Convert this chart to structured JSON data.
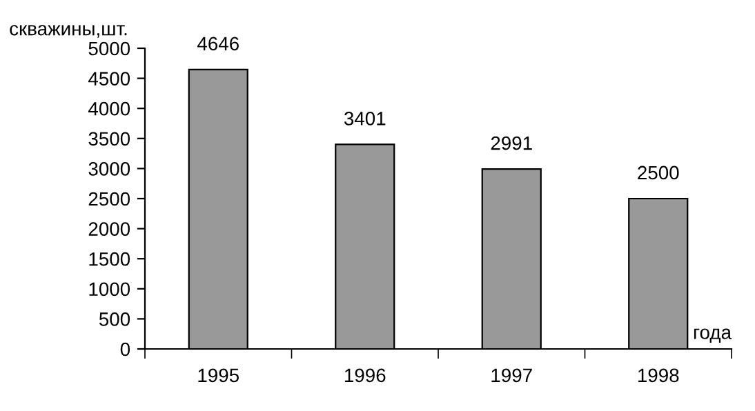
{
  "chart_data": {
    "type": "bar",
    "xlabel": "года",
    "ylabel": "скважины,шт.",
    "categories": [
      "1995",
      "1996",
      "1997",
      "1998"
    ],
    "values": [
      4646,
      3401,
      2991,
      2500
    ],
    "color": "#999999",
    "ylim": [
      0,
      5000
    ],
    "yticks": [
      0,
      500,
      1000,
      1500,
      2000,
      2500,
      3000,
      3500,
      4000,
      4500,
      5000
    ],
    "data_labels": true,
    "grid": false,
    "legend": false
  }
}
